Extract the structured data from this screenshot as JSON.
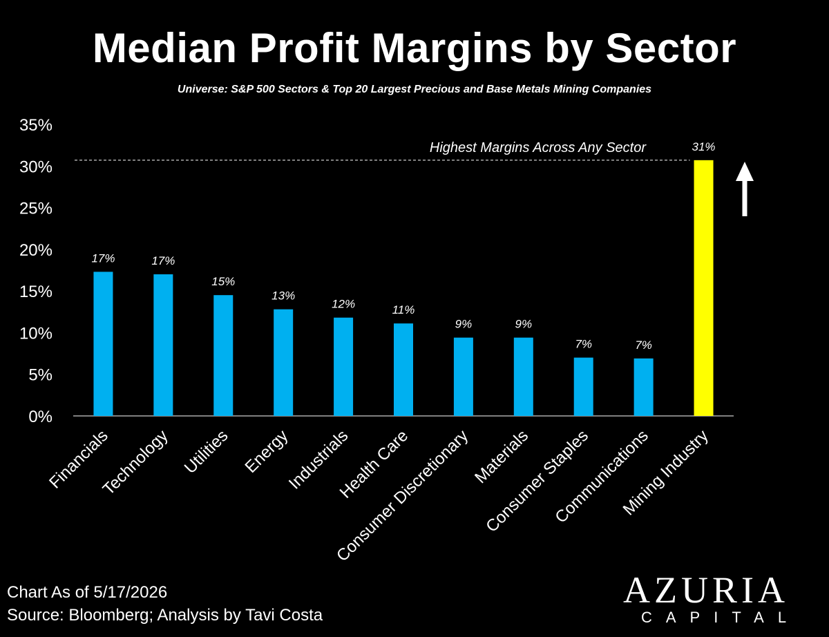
{
  "title": "Median Profit Margins by Sector",
  "subtitle": "Universe: S&P 500 Sectors & Top 20 Largest Precious and Base Metals Mining Companies",
  "footer": {
    "line1": "Chart As of 5/17/2026",
    "line2": "Source: Bloomberg; Analysis by Tavi Costa"
  },
  "logo": {
    "word": "AZURIA",
    "sub": "CAPITAL"
  },
  "colors": {
    "background": "#000000",
    "bar": "#00B0F0",
    "highlight": "#FFFF00",
    "text": "#FFFFFF"
  },
  "chart_data": {
    "type": "bar",
    "categories": [
      "Financials",
      "Technology",
      "Utilities",
      "Energy",
      "Industrials",
      "Health Care",
      "Consumer Discretionary",
      "Materials",
      "Consumer Staples",
      "Communications",
      "Mining Industry"
    ],
    "values": [
      17.3,
      17.0,
      14.5,
      12.8,
      11.8,
      11.1,
      9.4,
      9.4,
      7.0,
      6.9,
      30.7
    ],
    "data_labels": [
      "17%",
      "17%",
      "15%",
      "13%",
      "12%",
      "11%",
      "9%",
      "9%",
      "7%",
      "7%",
      "31%"
    ],
    "highlight_index": 10,
    "y_ticks": [
      0,
      5,
      10,
      15,
      20,
      25,
      30,
      35
    ],
    "y_tick_labels": [
      "0%",
      "5%",
      "10%",
      "15%",
      "20%",
      "25%",
      "30%",
      "35%"
    ],
    "ylim": [
      0,
      35
    ],
    "reference_line": {
      "value": 30.7,
      "label": "Highest Margins Across Any Sector",
      "style": "dashed"
    },
    "arrow": "up",
    "grid": false,
    "legend": "none",
    "xlabel": "",
    "ylabel": ""
  }
}
